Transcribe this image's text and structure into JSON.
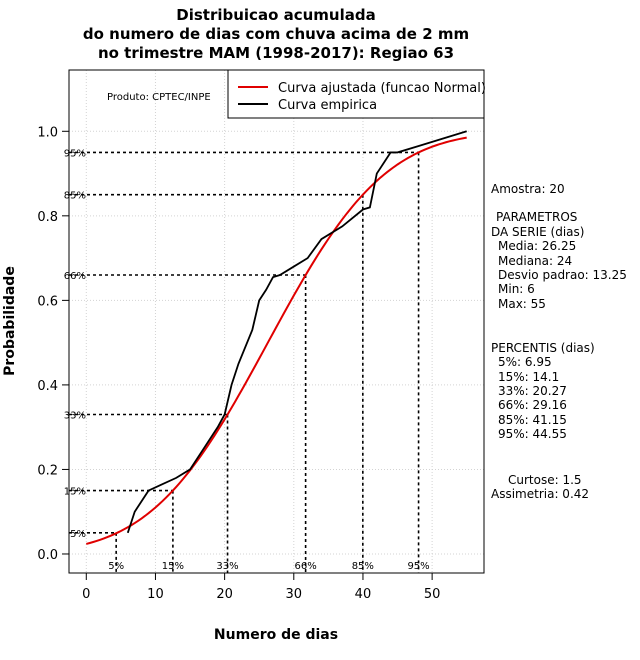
{
  "chart_data": {
    "type": "line",
    "title": [
      "Distribuicao acumulada",
      "do numero de dias com chuva acima de 2 mm",
      "no trimestre MAM (1998-2017): Regiao 63"
    ],
    "xlabel": "Numero de dias",
    "ylabel": "Probabilidade",
    "xlim": [
      -2.5,
      57.5
    ],
    "ylim": [
      -0.045,
      1.145
    ],
    "x_ticks": [
      0,
      10,
      20,
      30,
      40,
      50
    ],
    "x_tick_labels": [
      "0",
      "10",
      "20",
      "30",
      "40",
      "50"
    ],
    "y_ticks": [
      0.0,
      0.2,
      0.4,
      0.6,
      0.8,
      1.0
    ],
    "y_tick_labels": [
      "0.0",
      "0.2",
      "0.4",
      "0.6",
      "0.8",
      "1.0"
    ],
    "grid": true,
    "producer_label": "Produto: CPTEC/INPE",
    "legend": [
      {
        "label": "Curva ajustada (funcao Normal)",
        "color": "#e00000"
      },
      {
        "label": "Curva empirica",
        "color": "#000000"
      }
    ],
    "fitted_normal": {
      "mean": 26.25,
      "sd": 13.25,
      "x_start": 0,
      "x_end": 55
    },
    "series": [
      {
        "name": "Curva empirica",
        "color": "#000000",
        "x": [
          6,
          7,
          9,
          11,
          13,
          15,
          17,
          19,
          20,
          21,
          22,
          24,
          25,
          26,
          27,
          28,
          30,
          32,
          34,
          37,
          40,
          41,
          42,
          43,
          44,
          45,
          48,
          55
        ],
        "y": [
          0.05,
          0.1,
          0.15,
          0.165,
          0.18,
          0.2,
          0.25,
          0.3,
          0.33,
          0.4,
          0.45,
          0.53,
          0.6,
          0.625,
          0.655,
          0.66,
          0.68,
          0.7,
          0.745,
          0.775,
          0.815,
          0.82,
          0.9,
          0.925,
          0.95,
          0.95,
          0.965,
          1.0
        ]
      }
    ],
    "percentile_lines": [
      {
        "label": "5%",
        "x": 4.32,
        "p": 0.05
      },
      {
        "label": "15%",
        "x": 12.52,
        "p": 0.15
      },
      {
        "label": "33%",
        "x": 20.42,
        "p": 0.33
      },
      {
        "label": "66%",
        "x": 31.71,
        "p": 0.66
      },
      {
        "label": "85%",
        "x": 39.98,
        "p": 0.85
      },
      {
        "label": "95%",
        "x": 48.04,
        "p": 0.95
      }
    ],
    "stats_panel": {
      "amostra": "Amostra: 20",
      "param_title_1": "PARAMETROS",
      "param_title_2": "DA SERIE (dias)",
      "media": "Media: 26.25",
      "mediana": "Mediana: 24",
      "desvio": "Desvio padrao: 13.25",
      "min": "Min: 6",
      "max": "Max: 55",
      "perc_title": "PERCENTIS (dias)",
      "p5": "5%: 6.95",
      "p15": "15%: 14.1",
      "p33": "33%: 20.27",
      "p66": "66%: 29.16",
      "p85": "85%: 41.15",
      "p95": "95%: 44.55",
      "curtose": "Curtose: 1.5",
      "assimetria": "Assimetria: 0.42"
    }
  }
}
